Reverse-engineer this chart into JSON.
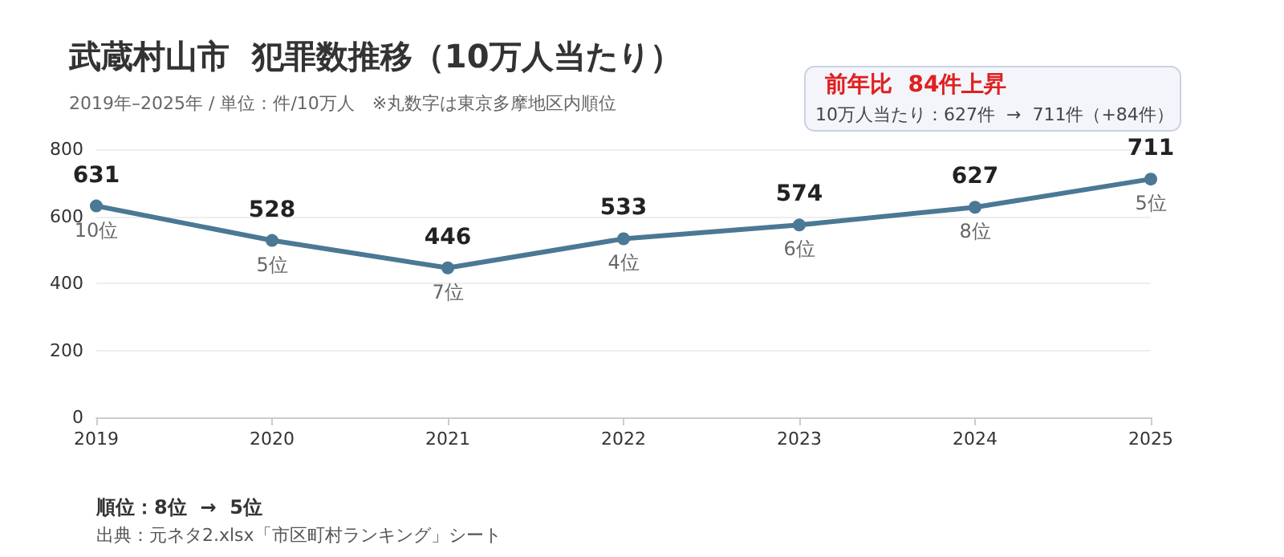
{
  "chart_data": {
    "type": "line",
    "title": "武蔵村山市  犯罪数推移（10万人当たり）",
    "subtitle": "2019年–2025年 / 単位：件/10万人　※丸数字は東京多摩地区内順位",
    "categories": [
      "2019",
      "2020",
      "2021",
      "2022",
      "2023",
      "2024",
      "2025"
    ],
    "series": [
      {
        "color": "#4a7895",
        "values": [
          631,
          528,
          446,
          533,
          574,
          627,
          711
        ]
      }
    ],
    "ylim": [
      0,
      800
    ],
    "yticks": [
      0,
      200,
      400,
      600,
      800
    ],
    "grid": "y",
    "marker": "circle",
    "line_style": "solid",
    "data_labels": true,
    "annotations": [
      "前年比  84件上昇",
      "10万人当たり：627件  →  711件（+84件）",
      "順位：8位  →  5位",
      "出典：元ネタ2.xlsx「市区町村ランキング」シート",
      {
        "text": "10位",
        "x": "2019",
        "y": 631
      },
      {
        "text": "5位",
        "x": "2020",
        "y": 528
      },
      {
        "text": "7位",
        "x": "2021",
        "y": 446
      },
      {
        "text": "4位",
        "x": "2022",
        "y": 533
      },
      {
        "text": "6位",
        "x": "2023",
        "y": 574
      },
      {
        "text": "8位",
        "x": "2024",
        "y": 627
      },
      {
        "text": "5位",
        "x": "2025",
        "y": 711
      }
    ]
  }
}
